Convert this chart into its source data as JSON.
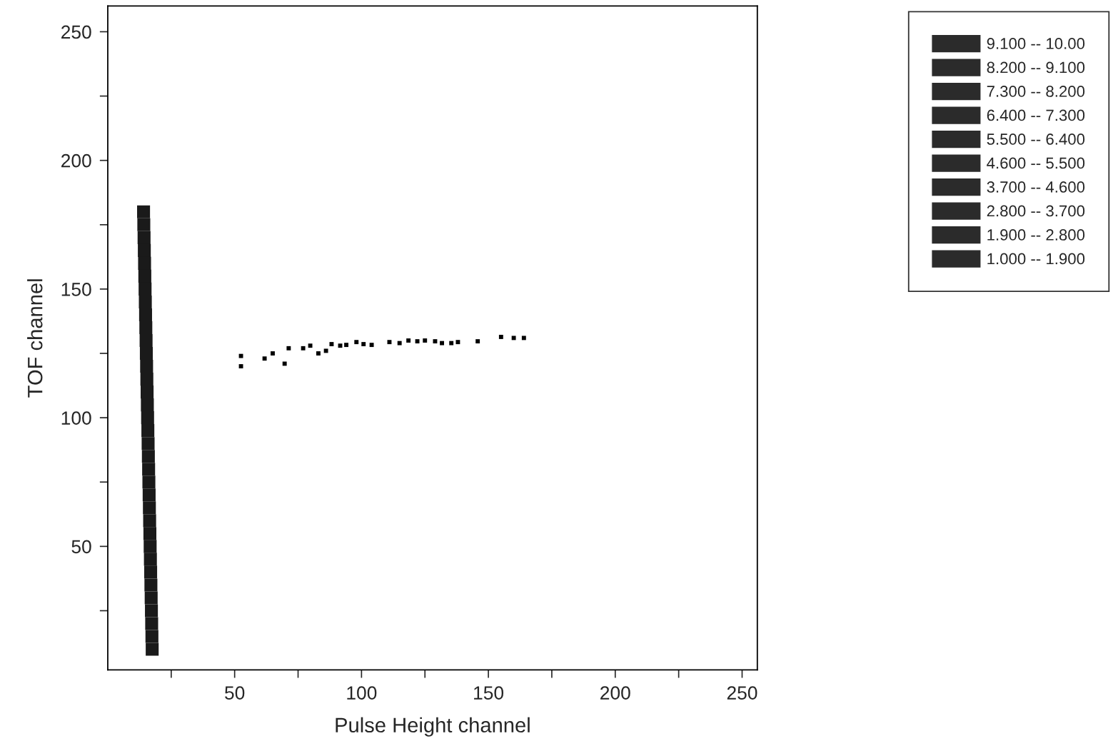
{
  "chart_data": {
    "type": "scatter",
    "xlabel": "Pulse Height channel",
    "ylabel": "TOF channel",
    "xlim": [
      0,
      256
    ],
    "ylim": [
      2,
      260
    ],
    "xticks": [
      {
        "value": 25,
        "label": null
      },
      50,
      {
        "value": 75,
        "label": null
      },
      100,
      {
        "value": 125,
        "label": null
      },
      150,
      {
        "value": 175,
        "label": null
      },
      200,
      {
        "value": 225,
        "label": null
      },
      250
    ],
    "yticks": [
      {
        "value": 25,
        "label": null
      },
      50,
      {
        "value": 75,
        "label": null
      },
      100,
      {
        "value": 125,
        "label": null
      },
      150,
      {
        "value": 175,
        "label": null
      },
      200,
      {
        "value": 225,
        "label": null
      },
      250
    ],
    "grid": false,
    "legend": "right",
    "marker": "square",
    "series": [
      {
        "color": "#1a1a1a",
        "x": [
          14.1,
          14.2,
          14.3,
          14.4,
          14.5,
          14.6,
          14.7,
          14.8,
          14.9,
          15.0,
          15.1,
          15.2,
          15.3,
          15.4,
          15.5,
          15.6,
          15.7,
          15.8,
          15.9,
          16.0,
          16.1,
          16.2,
          16.3,
          16.4,
          16.5,
          16.6,
          16.7,
          16.8,
          16.9,
          17.0,
          17.1,
          17.2,
          17.3,
          17.4,
          17.5
        ],
        "values": [
          180,
          175,
          170,
          165,
          160,
          155,
          150,
          145,
          140,
          135,
          130,
          125,
          120,
          115,
          110,
          105,
          100,
          95,
          90,
          85,
          80,
          75,
          70,
          65,
          60,
          55,
          50,
          45,
          40,
          35,
          30,
          25,
          20,
          15,
          10
        ]
      },
      {
        "color": "#000000",
        "x": [
          52.5,
          52.5,
          61.8,
          65,
          69.7,
          71.3,
          77,
          79.8,
          83,
          86,
          88.2,
          91.6,
          94,
          98,
          100.8,
          104,
          111,
          115,
          118.5,
          122,
          125,
          129,
          131.7,
          135.4,
          138,
          145.8,
          155,
          160,
          164
        ],
        "values": [
          124,
          120,
          123,
          125,
          121,
          127,
          127,
          128,
          125,
          126,
          128.6,
          128,
          128.3,
          129.4,
          128.6,
          128.3,
          129.4,
          129,
          130,
          129.7,
          130,
          129.7,
          129,
          129,
          129.4,
          129.7,
          131.4,
          131,
          131
        ]
      },
      {
        "name": "9.100 -- 10.00",
        "color": "#2b2b2b"
      },
      {
        "name": "8.200 -- 9.100",
        "color": "#2b2b2b"
      },
      {
        "name": "7.300 -- 8.200",
        "color": "#2b2b2b"
      },
      {
        "name": "6.400 -- 7.300",
        "color": "#2b2b2b"
      },
      {
        "name": "5.500 -- 6.400",
        "color": "#2b2b2b"
      },
      {
        "name": "4.600 -- 5.500",
        "color": "#2b2b2b"
      },
      {
        "name": "3.700 -- 4.600",
        "color": "#2b2b2b"
      },
      {
        "name": "2.800 -- 3.700",
        "color": "#2b2b2b"
      },
      {
        "name": "1.900 -- 2.800",
        "color": "#2b2b2b"
      },
      {
        "name": "1.000 -- 1.900",
        "color": "#2b2b2b"
      }
    ]
  }
}
